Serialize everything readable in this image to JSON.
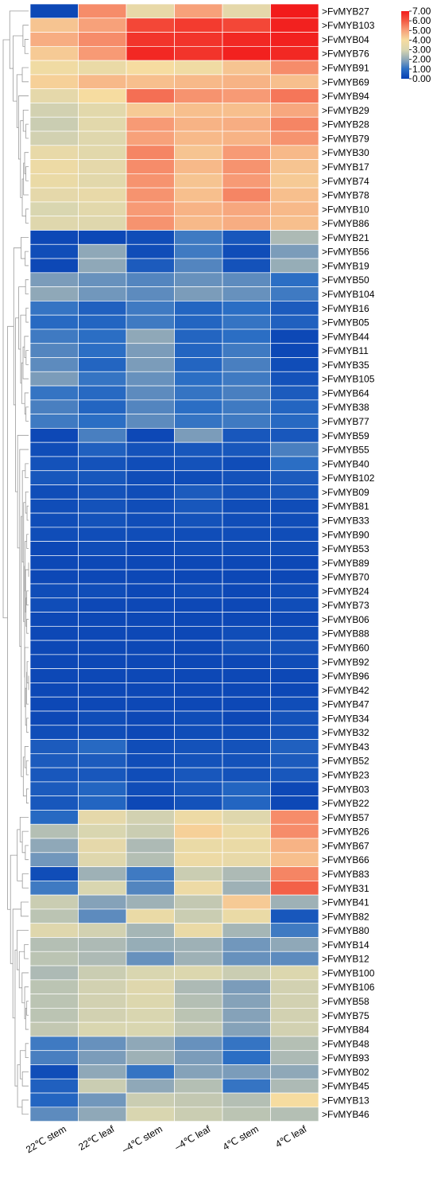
{
  "chart_data": {
    "type": "heatmap",
    "columns": [
      "22℃ stem",
      "22℃ leaf",
      "–4℃ stem",
      "–4℃ leaf",
      "4℃ stem",
      "4℃ leaf"
    ],
    "colorbar": {
      "min": 0,
      "max": 7,
      "ticks": [
        "7.00",
        "6.00",
        "5.00",
        "4.00",
        "3.00",
        "2.00",
        "1.00",
        "0.00"
      ],
      "tick_values": [
        7,
        6,
        5,
        4,
        3,
        2,
        1,
        0
      ],
      "stops": [
        "#053fb3",
        "#2b6ec4",
        "#8fa8b8",
        "#d9d6b0",
        "#f6dca0",
        "#f7a17a",
        "#f35a43",
        "#f21b1b"
      ]
    },
    "rows": [
      {
        "label": ">FvMYB27",
        "values": [
          0.2,
          5.3,
          3.5,
          5.0,
          3.4,
          7.0
        ]
      },
      {
        "label": ">FvMYB103",
        "values": [
          4.4,
          5.0,
          6.3,
          6.5,
          6.3,
          6.9
        ]
      },
      {
        "label": ">FvMYB04",
        "values": [
          4.8,
          5.3,
          6.6,
          6.6,
          6.8,
          6.9
        ]
      },
      {
        "label": ">FvMYB76",
        "values": [
          4.3,
          5.1,
          6.8,
          6.6,
          6.9,
          6.8
        ]
      },
      {
        "label": ">FvMYB91",
        "values": [
          3.8,
          3.6,
          4.0,
          3.8,
          4.4,
          5.3
        ]
      },
      {
        "label": ">FvMYB69",
        "values": [
          4.2,
          4.6,
          4.5,
          4.6,
          4.7,
          4.5
        ]
      },
      {
        "label": ">FvMYB94",
        "values": [
          3.4,
          4.0,
          5.7,
          5.2,
          5.1,
          5.6
        ]
      },
      {
        "label": ">FvMYB29",
        "values": [
          2.9,
          3.3,
          4.3,
          4.5,
          4.5,
          4.9
        ]
      },
      {
        "label": ">FvMYB28",
        "values": [
          2.8,
          3.3,
          5.1,
          4.7,
          4.8,
          5.4
        ]
      },
      {
        "label": ">FvMYB79",
        "values": [
          2.9,
          3.2,
          5.0,
          4.6,
          4.7,
          5.2
        ]
      },
      {
        "label": ">FvMYB30",
        "values": [
          3.5,
          3.3,
          5.4,
          4.4,
          5.1,
          4.6
        ]
      },
      {
        "label": ">FvMYB17",
        "values": [
          3.7,
          3.4,
          5.3,
          4.6,
          5.2,
          4.4
        ]
      },
      {
        "label": ">FvMYB74",
        "values": [
          3.6,
          3.3,
          5.2,
          4.4,
          5.1,
          4.3
        ]
      },
      {
        "label": ">FvMYB78",
        "values": [
          3.4,
          3.5,
          5.2,
          4.5,
          5.4,
          4.5
        ]
      },
      {
        "label": ">FvMYB10",
        "values": [
          3.0,
          3.3,
          5.1,
          4.7,
          4.9,
          4.6
        ]
      },
      {
        "label": ">FvMYB86",
        "values": [
          3.2,
          3.2,
          5.2,
          4.6,
          4.8,
          4.5
        ]
      },
      {
        "label": ">FvMYB21",
        "values": [
          0.2,
          0.2,
          0.3,
          1.2,
          0.5,
          2.4
        ]
      },
      {
        "label": ">FvMYB56",
        "values": [
          0.3,
          2.0,
          0.3,
          1.2,
          0.3,
          1.8
        ]
      },
      {
        "label": ">FvMYB19",
        "values": [
          0.2,
          2.0,
          0.6,
          1.4,
          0.4,
          2.1
        ]
      },
      {
        "label": ">FvMYB50",
        "values": [
          1.8,
          1.6,
          1.4,
          1.6,
          1.5,
          1.0
        ]
      },
      {
        "label": ">FvMYB104",
        "values": [
          2.0,
          1.7,
          1.5,
          1.8,
          1.6,
          1.2
        ]
      },
      {
        "label": ">FvMYB16",
        "values": [
          1.1,
          0.7,
          1.2,
          0.8,
          1.0,
          0.6
        ]
      },
      {
        "label": ">FvMYB05",
        "values": [
          0.9,
          0.8,
          1.2,
          0.8,
          1.1,
          0.7
        ]
      },
      {
        "label": ">FvMYB44",
        "values": [
          1.2,
          1.0,
          2.0,
          0.8,
          1.0,
          0.2
        ]
      },
      {
        "label": ">FvMYB11",
        "values": [
          1.4,
          1.0,
          1.8,
          0.8,
          1.2,
          0.2
        ]
      },
      {
        "label": ">FvMYB35",
        "values": [
          1.5,
          0.8,
          1.8,
          0.8,
          1.3,
          0.3
        ]
      },
      {
        "label": ">FvMYB105",
        "values": [
          1.8,
          1.1,
          1.6,
          1.0,
          1.2,
          0.4
        ]
      },
      {
        "label": ">FvMYB64",
        "values": [
          1.1,
          0.9,
          1.5,
          1.1,
          1.3,
          0.6
        ]
      },
      {
        "label": ">FvMYB38",
        "values": [
          1.3,
          0.8,
          1.4,
          1.0,
          1.2,
          0.8
        ]
      },
      {
        "label": ">FvMYB77",
        "values": [
          1.2,
          1.0,
          1.5,
          1.1,
          1.2,
          0.9
        ]
      },
      {
        "label": ">FvMYB59",
        "values": [
          0.2,
          1.3,
          0.2,
          1.8,
          0.5,
          0.5
        ]
      },
      {
        "label": ">FvMYB55",
        "values": [
          0.3,
          0.7,
          0.4,
          0.5,
          0.5,
          1.3
        ]
      },
      {
        "label": ">FvMYB40",
        "values": [
          0.4,
          0.4,
          0.3,
          0.4,
          0.3,
          1.0
        ]
      },
      {
        "label": ">FvMYB102",
        "values": [
          0.5,
          0.5,
          0.3,
          0.3,
          0.4,
          0.6
        ]
      },
      {
        "label": ">FvMYB09",
        "values": [
          0.3,
          0.4,
          0.3,
          0.6,
          0.4,
          0.5
        ]
      },
      {
        "label": ">FvMYB81",
        "values": [
          0.3,
          0.4,
          0.3,
          0.5,
          0.3,
          0.3
        ]
      },
      {
        "label": ">FvMYB33",
        "values": [
          0.3,
          0.4,
          0.3,
          0.4,
          0.3,
          0.3
        ]
      },
      {
        "label": ">FvMYB90",
        "values": [
          0.3,
          0.3,
          0.3,
          0.3,
          0.3,
          0.3
        ]
      },
      {
        "label": ">FvMYB53",
        "values": [
          0.2,
          0.3,
          0.2,
          0.3,
          0.3,
          0.3
        ]
      },
      {
        "label": ">FvMYB89",
        "values": [
          0.2,
          0.2,
          0.2,
          0.2,
          0.2,
          0.2
        ]
      },
      {
        "label": ">FvMYB70",
        "values": [
          0.2,
          0.2,
          0.2,
          0.2,
          0.2,
          0.2
        ]
      },
      {
        "label": ">FvMYB24",
        "values": [
          0.3,
          0.3,
          0.2,
          0.3,
          0.2,
          0.3
        ]
      },
      {
        "label": ">FvMYB73",
        "values": [
          0.3,
          0.2,
          0.2,
          0.2,
          0.2,
          0.3
        ]
      },
      {
        "label": ">FvMYB06",
        "values": [
          0.2,
          0.2,
          0.2,
          0.2,
          0.2,
          0.2
        ]
      },
      {
        "label": ">FvMYB88",
        "values": [
          0.2,
          0.2,
          0.2,
          0.2,
          0.3,
          0.3
        ]
      },
      {
        "label": ">FvMYB60",
        "values": [
          0.2,
          0.2,
          0.2,
          0.2,
          0.4,
          0.4
        ]
      },
      {
        "label": ">FvMYB92",
        "values": [
          0.2,
          0.2,
          0.2,
          0.2,
          0.2,
          0.3
        ]
      },
      {
        "label": ">FvMYB96",
        "values": [
          0.2,
          0.2,
          0.2,
          0.2,
          0.2,
          0.2
        ]
      },
      {
        "label": ">FvMYB42",
        "values": [
          0.2,
          0.2,
          0.2,
          0.2,
          0.2,
          0.2
        ]
      },
      {
        "label": ">FvMYB47",
        "values": [
          0.2,
          0.2,
          0.2,
          0.2,
          0.2,
          0.3
        ]
      },
      {
        "label": ">FvMYB34",
        "values": [
          0.2,
          0.3,
          0.2,
          0.3,
          0.2,
          0.4
        ]
      },
      {
        "label": ">FvMYB32",
        "values": [
          0.3,
          0.3,
          0.2,
          0.3,
          0.3,
          0.4
        ]
      },
      {
        "label": ">FvMYB43",
        "values": [
          0.6,
          0.9,
          0.3,
          0.4,
          0.4,
          0.7
        ]
      },
      {
        "label": ">FvMYB52",
        "values": [
          0.6,
          0.6,
          0.3,
          0.4,
          0.4,
          0.6
        ]
      },
      {
        "label": ">FvMYB23",
        "values": [
          0.5,
          0.5,
          0.3,
          0.5,
          0.4,
          0.5
        ]
      },
      {
        "label": ">FvMYB03",
        "values": [
          0.6,
          0.8,
          0.3,
          0.5,
          0.8,
          0.2
        ]
      },
      {
        "label": ">FvMYB22",
        "values": [
          0.5,
          0.8,
          0.2,
          0.4,
          0.8,
          0.2
        ]
      },
      {
        "label": ">FvMYB57",
        "values": [
          0.9,
          3.4,
          2.9,
          3.7,
          3.2,
          5.3
        ]
      },
      {
        "label": ">FvMYB26",
        "values": [
          2.5,
          3.0,
          2.8,
          4.2,
          3.6,
          5.3
        ]
      },
      {
        "label": ">FvMYB67",
        "values": [
          2.0,
          3.4,
          2.4,
          3.6,
          3.6,
          4.7
        ]
      },
      {
        "label": ">FvMYB66",
        "values": [
          1.7,
          3.2,
          2.5,
          3.7,
          3.5,
          4.5
        ]
      },
      {
        "label": ">FvMYB83",
        "values": [
          0.3,
          2.2,
          1.2,
          2.8,
          2.4,
          5.4
        ]
      },
      {
        "label": ">FvMYB31",
        "values": [
          1.2,
          3.0,
          1.4,
          3.7,
          2.2,
          5.9
        ]
      },
      {
        "label": ">FvMYB41",
        "values": [
          2.8,
          1.9,
          2.2,
          2.7,
          4.3,
          2.2
        ]
      },
      {
        "label": ">FvMYB82",
        "values": [
          2.6,
          1.5,
          3.6,
          2.8,
          3.6,
          0.5
        ]
      },
      {
        "label": ">FvMYB80",
        "values": [
          3.2,
          2.9,
          2.3,
          3.6,
          2.3,
          1.2
        ]
      },
      {
        "label": ">FvMYB14",
        "values": [
          2.5,
          2.4,
          2.1,
          2.2,
          1.7,
          2.0
        ]
      },
      {
        "label": ">FvMYB12",
        "values": [
          2.6,
          2.4,
          1.6,
          2.2,
          1.6,
          1.5
        ]
      },
      {
        "label": ">FvMYB100",
        "values": [
          2.4,
          2.8,
          3.0,
          3.1,
          2.8,
          3.1
        ]
      },
      {
        "label": ">FvMYB106",
        "values": [
          2.6,
          2.9,
          3.2,
          2.4,
          1.8,
          2.9
        ]
      },
      {
        "label": ">FvMYB58",
        "values": [
          2.6,
          2.9,
          3.1,
          2.5,
          1.9,
          2.9
        ]
      },
      {
        "label": ">FvMYB75",
        "values": [
          2.6,
          2.9,
          3.0,
          2.6,
          1.9,
          2.9
        ]
      },
      {
        "label": ">FvMYB84",
        "values": [
          2.7,
          3.0,
          3.0,
          2.7,
          1.9,
          2.9
        ]
      },
      {
        "label": ">FvMYB48",
        "values": [
          1.2,
          1.6,
          2.0,
          1.6,
          1.1,
          2.5
        ]
      },
      {
        "label": ">FvMYB93",
        "values": [
          1.3,
          1.8,
          2.2,
          1.8,
          1.0,
          2.4
        ]
      },
      {
        "label": ">FvMYB02",
        "values": [
          0.3,
          2.0,
          1.1,
          1.9,
          1.8,
          2.0
        ]
      },
      {
        "label": ">FvMYB45",
        "values": [
          0.7,
          2.8,
          2.0,
          2.5,
          1.1,
          2.4
        ]
      },
      {
        "label": ">FvMYB13",
        "values": [
          0.8,
          1.7,
          2.8,
          2.7,
          2.5,
          4.0
        ]
      },
      {
        "label": ">FvMYB46",
        "values": [
          1.5,
          2.0,
          3.0,
          2.8,
          2.6,
          2.5
        ]
      }
    ]
  }
}
